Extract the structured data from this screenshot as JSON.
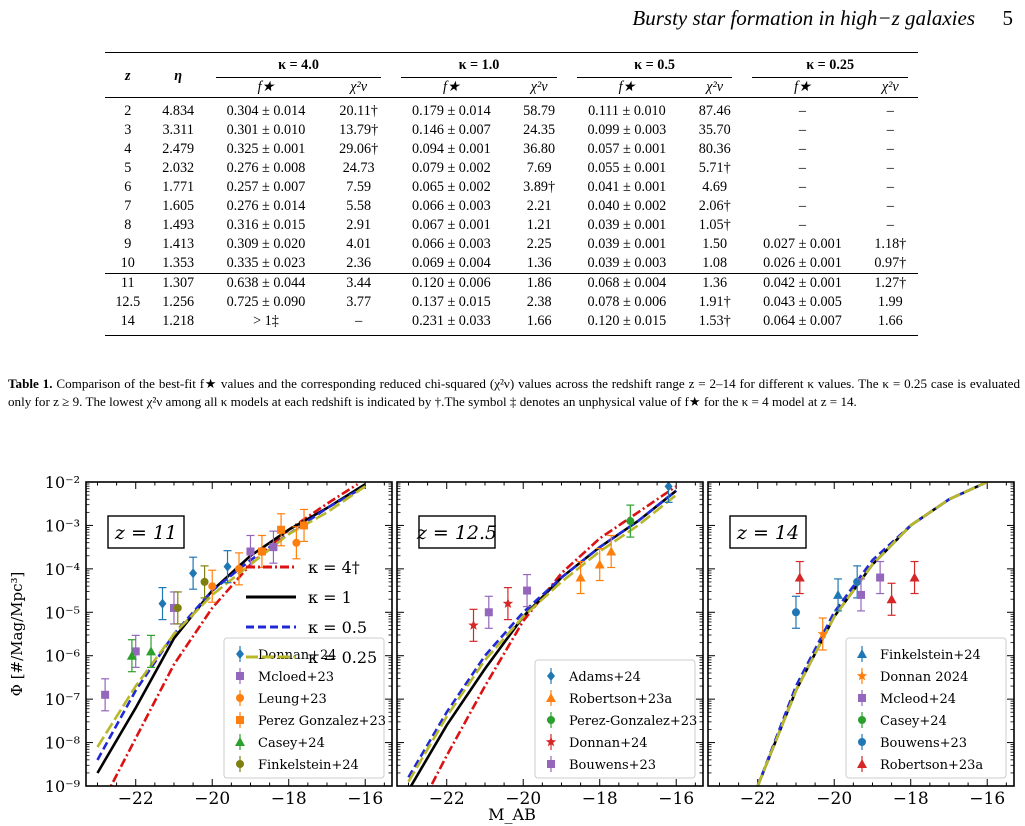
{
  "header": {
    "title": "Bursty star formation in high−z galaxies",
    "page": "5"
  },
  "table": {
    "col_z": "z",
    "col_eta": "η",
    "kappa_headers": [
      "κ = 4.0",
      "κ = 1.0",
      "κ = 0.5",
      "κ = 0.25"
    ],
    "sub_f": "f★",
    "sub_chi": "χ²ν",
    "rows": [
      [
        "2",
        "4.834",
        "0.304 ± 0.014",
        "20.11†",
        "0.179 ± 0.014",
        "58.79",
        "0.111 ± 0.010",
        "87.46",
        "–",
        "–"
      ],
      [
        "3",
        "3.311",
        "0.301 ± 0.010",
        "13.79†",
        "0.146 ± 0.007",
        "24.35",
        "0.099 ± 0.003",
        "35.70",
        "–",
        "–"
      ],
      [
        "4",
        "2.479",
        "0.325 ± 0.001",
        "29.06†",
        "0.094 ± 0.001",
        "36.80",
        "0.057 ± 0.001",
        "80.36",
        "–",
        "–"
      ],
      [
        "5",
        "2.032",
        "0.276 ± 0.008",
        "24.73",
        "0.079 ± 0.002",
        "7.69",
        "0.055 ± 0.001",
        "5.71†",
        "–",
        "–"
      ],
      [
        "6",
        "1.771",
        "0.257 ± 0.007",
        "7.59",
        "0.065 ± 0.002",
        "3.89†",
        "0.041 ± 0.001",
        "4.69",
        "–",
        "–"
      ],
      [
        "7",
        "1.605",
        "0.276 ± 0.014",
        "5.58",
        "0.066 ± 0.003",
        "2.21",
        "0.040 ± 0.002",
        "2.06†",
        "–",
        "–"
      ],
      [
        "8",
        "1.493",
        "0.316 ± 0.015",
        "2.91",
        "0.067 ± 0.001",
        "1.21",
        "0.039 ± 0.001",
        "1.05†",
        "–",
        "–"
      ],
      [
        "9",
        "1.413",
        "0.309 ± 0.020",
        "4.01",
        "0.066 ± 0.003",
        "2.25",
        "0.039 ± 0.001",
        "1.50",
        "0.027 ± 0.001",
        "1.18†"
      ],
      [
        "10",
        "1.353",
        "0.335 ± 0.023",
        "2.36",
        "0.069 ± 0.004",
        "1.36",
        "0.039 ± 0.003",
        "1.08",
        "0.026 ± 0.001",
        "0.97†"
      ]
    ],
    "rows2": [
      [
        "11",
        "1.307",
        "0.638 ± 0.044",
        "3.44",
        "0.120 ± 0.006",
        "1.86",
        "0.068 ± 0.004",
        "1.36",
        "0.042 ± 0.001",
        "1.27†"
      ],
      [
        "12.5",
        "1.256",
        "0.725 ± 0.090",
        "3.77",
        "0.137 ± 0.015",
        "2.38",
        "0.078 ± 0.006",
        "1.91†",
        "0.043 ± 0.005",
        "1.99"
      ],
      [
        "14",
        "1.218",
        "> 1‡",
        "–",
        "0.231 ± 0.033",
        "1.66",
        "0.120 ± 0.015",
        "1.53†",
        "0.064 ± 0.007",
        "1.66"
      ]
    ]
  },
  "caption": {
    "label": "Table 1.",
    "text": " Comparison of the best-fit f★ values and the corresponding reduced chi-squared (χ²ν) values across the redshift range z = 2–14 for different κ values. The κ = 0.25 case is evaluated only for z ≥ 9. The lowest χ²ν among all κ models at each redshift is indicated by †.The symbol ‡ denotes an unphysical value of f★ for the κ = 4 model at z = 14."
  },
  "chart_data": [
    {
      "type": "line",
      "panel_label": "z = 11",
      "xlabel": "M_AB",
      "ylabel": "Φ [#/Mag/Mpc³]",
      "xlim": [
        -23.3,
        -15.3
      ],
      "ylim_log10": [
        -9,
        -2
      ],
      "xticks": [
        "−22",
        "−20",
        "−18",
        "−16"
      ],
      "yticks": [
        "10⁻²",
        "10⁻³",
        "10⁻⁴",
        "10⁻⁵",
        "10⁻⁶",
        "10⁻⁷",
        "10⁻⁸",
        "10⁻⁹"
      ],
      "model_legend": [
        "κ = 4†",
        "κ = 1",
        "κ = 0.5",
        "κ = 0.25"
      ],
      "model_colors": [
        "#dd1111",
        "#000000",
        "#1f2ad6",
        "#b8b82a"
      ],
      "series": [
        {
          "name": "κ = 4†",
          "x": [
            -23.0,
            -22.0,
            -21.0,
            -20.0,
            -19.0,
            -18.0,
            -17.0,
            -16.2
          ],
          "log10_y": [
            -9.6,
            -7.9,
            -6.2,
            -4.9,
            -3.9,
            -3.1,
            -2.5,
            -2.05
          ]
        },
        {
          "name": "κ = 1",
          "x": [
            -23.0,
            -22.0,
            -21.0,
            -20.0,
            -19.0,
            -18.0,
            -17.0,
            -16.0
          ],
          "log10_y": [
            -8.7,
            -7.2,
            -5.6,
            -4.5,
            -3.7,
            -3.1,
            -2.6,
            -2.05
          ]
        },
        {
          "name": "κ = 0.5",
          "x": [
            -23.0,
            -22.0,
            -21.0,
            -20.0,
            -19.0,
            -18.0,
            -17.0,
            -16.0
          ],
          "log10_y": [
            -8.4,
            -6.8,
            -5.5,
            -4.5,
            -3.8,
            -3.2,
            -2.6,
            -2.1
          ]
        },
        {
          "name": "κ = 0.25",
          "x": [
            -23.0,
            -22.0,
            -21.0,
            -20.0,
            -19.0,
            -18.0,
            -17.0,
            -16.0
          ],
          "log10_y": [
            -8.1,
            -6.7,
            -5.5,
            -4.6,
            -3.9,
            -3.2,
            -2.7,
            -2.1
          ]
        }
      ],
      "data_legend": [
        "Donnan+24",
        "Mcloed+23",
        "Leung+23",
        "Perez Gonzalez+23",
        "Casey+24",
        "Finkelstein+24"
      ],
      "data_colors": [
        "#1f77b4",
        "#9467bd",
        "#ff7f0e",
        "#ff7f0e",
        "#2ca02c",
        "#7f7f10"
      ],
      "data_markers": [
        "diamond",
        "square",
        "circle",
        "square",
        "triangle",
        "circle"
      ],
      "points": [
        {
          "set": 0,
          "x": -21.3,
          "log10_y": -4.8
        },
        {
          "set": 0,
          "x": -20.5,
          "log10_y": -4.1
        },
        {
          "set": 0,
          "x": -19.6,
          "log10_y": -3.95
        },
        {
          "set": 1,
          "x": -22.8,
          "log10_y": -6.9
        },
        {
          "set": 1,
          "x": -22.0,
          "log10_y": -5.9
        },
        {
          "set": 1,
          "x": -21.0,
          "log10_y": -4.9
        },
        {
          "set": 1,
          "x": -19.0,
          "log10_y": -3.6
        },
        {
          "set": 1,
          "x": -18.4,
          "log10_y": -3.5
        },
        {
          "set": 2,
          "x": -20.0,
          "log10_y": -4.4
        },
        {
          "set": 2,
          "x": -19.3,
          "log10_y": -4.0
        },
        {
          "set": 2,
          "x": -17.8,
          "log10_y": -3.4
        },
        {
          "set": 3,
          "x": -18.7,
          "log10_y": -3.6
        },
        {
          "set": 3,
          "x": -18.2,
          "log10_y": -3.1
        },
        {
          "set": 3,
          "x": -17.6,
          "log10_y": -3.0
        },
        {
          "set": 4,
          "x": -22.1,
          "log10_y": -6.0
        },
        {
          "set": 4,
          "x": -21.6,
          "log10_y": -5.9
        },
        {
          "set": 5,
          "x": -20.9,
          "log10_y": -4.9
        },
        {
          "set": 5,
          "x": -20.2,
          "log10_y": -4.3
        }
      ]
    },
    {
      "type": "line",
      "panel_label": "z = 12.5",
      "xlim": [
        -23.3,
        -15.3
      ],
      "ylim_log10": [
        -9,
        -2
      ],
      "xticks": [
        "−22",
        "−20",
        "−18",
        "−16"
      ],
      "series": [
        {
          "name": "κ = 4†",
          "x": [
            -23.0,
            -22.0,
            -21.0,
            -20.0,
            -19.0,
            -18.0,
            -17.0,
            -16.0
          ],
          "log10_y": [
            -10.0,
            -8.3,
            -6.7,
            -5.2,
            -4.1,
            -3.3,
            -2.7,
            -2.1
          ]
        },
        {
          "name": "κ = 1",
          "x": [
            -23.0,
            -22.0,
            -21.0,
            -20.0,
            -19.0,
            -18.0,
            -17.0,
            -16.0
          ],
          "log10_y": [
            -9.1,
            -7.6,
            -6.3,
            -5.1,
            -4.2,
            -3.5,
            -2.9,
            -2.2
          ]
        },
        {
          "name": "κ = 0.5",
          "x": [
            -23.0,
            -22.0,
            -21.0,
            -20.0,
            -19.0,
            -18.0,
            -17.0,
            -16.0
          ],
          "log10_y": [
            -8.8,
            -7.3,
            -6.0,
            -5.0,
            -4.2,
            -3.5,
            -2.9,
            -2.2
          ]
        },
        {
          "name": "κ = 0.25",
          "x": [
            -23.0,
            -22.0,
            -21.0,
            -20.0,
            -19.0,
            -18.0,
            -17.0,
            -16.0
          ],
          "log10_y": [
            -8.9,
            -7.4,
            -6.1,
            -5.1,
            -4.3,
            -3.6,
            -3.0,
            -2.3
          ]
        }
      ],
      "data_legend": [
        "Adams+24",
        "Robertson+23a",
        "Perez-Gonzalez+23",
        "Donnan+24",
        "Bouwens+23"
      ],
      "data_colors": [
        "#1f77b4",
        "#ff7f0e",
        "#2ca02c",
        "#d62728",
        "#9467bd"
      ],
      "data_markers": [
        "diamond",
        "triangle",
        "circle",
        "star",
        "square"
      ],
      "points": [
        {
          "set": 0,
          "x": -16.2,
          "log10_y": -2.1
        },
        {
          "set": 1,
          "x": -18.5,
          "log10_y": -4.2
        },
        {
          "set": 1,
          "x": -18.0,
          "log10_y": -3.9
        },
        {
          "set": 1,
          "x": -17.7,
          "log10_y": -3.6
        },
        {
          "set": 2,
          "x": -17.2,
          "log10_y": -2.9
        },
        {
          "set": 3,
          "x": -21.3,
          "log10_y": -5.3
        },
        {
          "set": 3,
          "x": -20.4,
          "log10_y": -4.8
        },
        {
          "set": 4,
          "x": -20.9,
          "log10_y": -5.0
        },
        {
          "set": 4,
          "x": -19.9,
          "log10_y": -4.5
        }
      ]
    },
    {
      "type": "line",
      "panel_label": "z = 14",
      "xlim": [
        -23.3,
        -15.3
      ],
      "ylim_log10": [
        -9,
        -2
      ],
      "xticks": [
        "−22",
        "−20",
        "−18",
        "−16"
      ],
      "series": [
        {
          "name": "κ = 1",
          "x": [
            -22.0,
            -21.0,
            -20.0,
            -19.0,
            -18.0,
            -17.0,
            -16.0
          ],
          "log10_y": [
            -9.0,
            -6.8,
            -5.1,
            -3.9,
            -3.0,
            -2.4,
            -2.0
          ]
        },
        {
          "name": "κ = 0.5",
          "x": [
            -22.0,
            -21.0,
            -20.0,
            -19.0,
            -18.0,
            -17.0,
            -16.0
          ],
          "log10_y": [
            -9.0,
            -6.7,
            -5.0,
            -3.8,
            -3.0,
            -2.4,
            -2.0
          ]
        },
        {
          "name": "κ = 0.25",
          "x": [
            -22.0,
            -21.0,
            -20.0,
            -19.0,
            -18.0,
            -17.0,
            -16.0
          ],
          "log10_y": [
            -9.0,
            -6.8,
            -5.1,
            -3.9,
            -3.0,
            -2.4,
            -2.0
          ]
        }
      ],
      "data_legend": [
        "Finkelstein+24",
        "Donnan 2024",
        "Mcleod+24",
        "Casey+24",
        "Bouwens+23",
        "Robertson+23a"
      ],
      "data_colors": [
        "#1f77b4",
        "#ff7f0e",
        "#9467bd",
        "#2ca02c",
        "#1f77b4",
        "#d62728"
      ],
      "data_markers": [
        "triangle",
        "star",
        "square",
        "circle",
        "circle",
        "triangle"
      ],
      "points": [
        {
          "set": 4,
          "x": -21.0,
          "log10_y": -5.0
        },
        {
          "set": 5,
          "x": -20.9,
          "log10_y": -4.2
        },
        {
          "set": 1,
          "x": -20.3,
          "log10_y": -5.5
        },
        {
          "set": 0,
          "x": -19.9,
          "log10_y": -4.6
        },
        {
          "set": 4,
          "x": -19.4,
          "log10_y": -4.3
        },
        {
          "set": 2,
          "x": -19.3,
          "log10_y": -4.6
        },
        {
          "set": 2,
          "x": -18.8,
          "log10_y": -4.2
        },
        {
          "set": 5,
          "x": -18.5,
          "log10_y": -4.7
        },
        {
          "set": 5,
          "x": -17.9,
          "log10_y": -4.2
        }
      ]
    }
  ]
}
